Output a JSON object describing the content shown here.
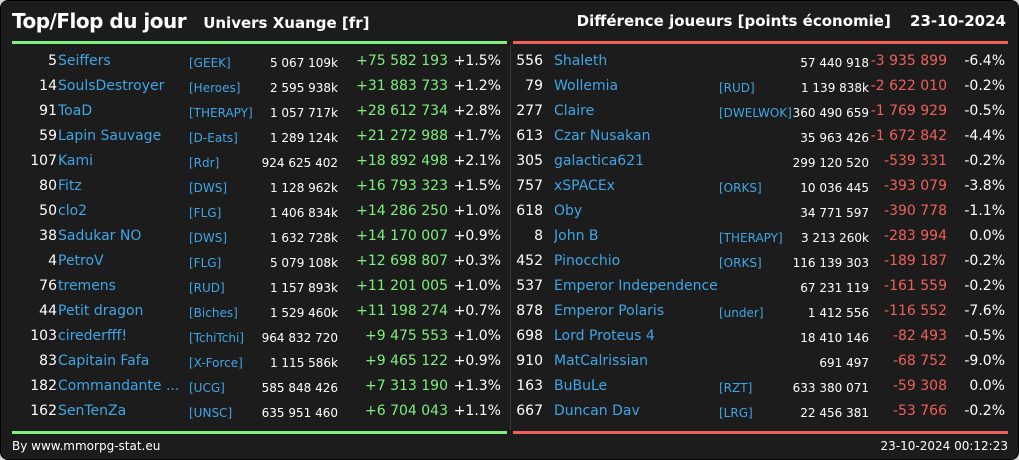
{
  "header": {
    "title": "Top/Flop du jour",
    "universe": "Univers Xuange [fr]",
    "metric": "Différence joueurs [points économie]",
    "date": "23-10-2024"
  },
  "colors": {
    "background": "#1c1c1c",
    "name": "#3fa6e6",
    "positive": "#7df07d",
    "negative": "#f0605a"
  },
  "top": [
    {
      "rank": "5",
      "name": "Seiffers",
      "alliance": "[GEEK]",
      "points": "5 067 109k",
      "diff": "+75 582 193",
      "pct": "+1.5%"
    },
    {
      "rank": "14",
      "name": "SoulsDestroyer",
      "alliance": "[Heroes]",
      "points": "2 595 938k",
      "diff": "+31 883 733",
      "pct": "+1.2%"
    },
    {
      "rank": "91",
      "name": "ToaD",
      "alliance": "[THERAPY]",
      "points": "1 057 717k",
      "diff": "+28 612 734",
      "pct": "+2.8%"
    },
    {
      "rank": "59",
      "name": "Lapin Sauvage",
      "alliance": "[D-Eats]",
      "points": "1 289 124k",
      "diff": "+21 272 988",
      "pct": "+1.7%"
    },
    {
      "rank": "107",
      "name": "Kami",
      "alliance": "[Rdr]",
      "points": "924 625 402",
      "diff": "+18 892 498",
      "pct": "+2.1%"
    },
    {
      "rank": "80",
      "name": "Fitz",
      "alliance": "[DWS]",
      "points": "1 128 962k",
      "diff": "+16 793 323",
      "pct": "+1.5%"
    },
    {
      "rank": "50",
      "name": "clo2",
      "alliance": "[FLG]",
      "points": "1 406 834k",
      "diff": "+14 286 250",
      "pct": "+1.0%"
    },
    {
      "rank": "38",
      "name": "Sadukar NO",
      "alliance": "[DWS]",
      "points": "1 632 728k",
      "diff": "+14 170 007",
      "pct": "+0.9%"
    },
    {
      "rank": "4",
      "name": "PetroV",
      "alliance": "[FLG]",
      "points": "5 079 108k",
      "diff": "+12 698 807",
      "pct": "+0.3%"
    },
    {
      "rank": "76",
      "name": "tremens",
      "alliance": "[RUD]",
      "points": "1 157 893k",
      "diff": "+11 201 005",
      "pct": "+1.0%"
    },
    {
      "rank": "44",
      "name": "Petit dragon",
      "alliance": "[Biches]",
      "points": "1 529 460k",
      "diff": "+11 198 274",
      "pct": "+0.7%"
    },
    {
      "rank": "103",
      "name": "cirederfff!",
      "alliance": "[TchiTchi]",
      "points": "964 832 720",
      "diff": "+9 475 553",
      "pct": "+1.0%"
    },
    {
      "rank": "83",
      "name": "Capitain Fafa",
      "alliance": "[X-Force]",
      "points": "1 115 586k",
      "diff": "+9 465 122",
      "pct": "+0.9%"
    },
    {
      "rank": "182",
      "name": "Commandante ...",
      "alliance": "[UCG]",
      "points": "585 848 426",
      "diff": "+7 313 190",
      "pct": "+1.3%"
    },
    {
      "rank": "162",
      "name": "SenTenZa",
      "alliance": "[UNSC]",
      "points": "635 951 460",
      "diff": "+6 704 043",
      "pct": "+1.1%"
    }
  ],
  "flop": [
    {
      "rank": "556",
      "name": "Shaleth",
      "alliance": "",
      "points": "57 440 918",
      "diff": "-3 935 899",
      "pct": "-6.4%"
    },
    {
      "rank": "79",
      "name": "Wollemia",
      "alliance": "[RUD]",
      "points": "1 139 838k",
      "diff": "-2 622 010",
      "pct": "-0.2%"
    },
    {
      "rank": "277",
      "name": "Claire",
      "alliance": "[DWELWOK]",
      "points": "360 490 659",
      "diff": "-1 769 929",
      "pct": "-0.5%"
    },
    {
      "rank": "613",
      "name": "Czar Nusakan",
      "alliance": "",
      "points": "35 963 426",
      "diff": "-1 672 842",
      "pct": "-4.4%"
    },
    {
      "rank": "305",
      "name": "galactica621",
      "alliance": "",
      "points": "299 120 520",
      "diff": "-539 331",
      "pct": "-0.2%"
    },
    {
      "rank": "757",
      "name": "xSPACEx",
      "alliance": "[ORKS]",
      "points": "10 036 445",
      "diff": "-393 079",
      "pct": "-3.8%"
    },
    {
      "rank": "618",
      "name": "Oby",
      "alliance": "",
      "points": "34 771 597",
      "diff": "-390 778",
      "pct": "-1.1%"
    },
    {
      "rank": "8",
      "name": "John B",
      "alliance": "[THERAPY]",
      "points": "3 213 260k",
      "diff": "-283 994",
      "pct": "0.0%"
    },
    {
      "rank": "452",
      "name": "Pinocchio",
      "alliance": "[ORKS]",
      "points": "116 139 303",
      "diff": "-189 187",
      "pct": "-0.2%"
    },
    {
      "rank": "537",
      "name": "Emperor Independence",
      "alliance": "",
      "points": "67 231 119",
      "diff": "-161 559",
      "pct": "-0.2%"
    },
    {
      "rank": "878",
      "name": "Emperor Polaris",
      "alliance": "[under]",
      "points": "1 412 556",
      "diff": "-116 552",
      "pct": "-7.6%"
    },
    {
      "rank": "698",
      "name": "Lord Proteus 4",
      "alliance": "",
      "points": "18 410 146",
      "diff": "-82 493",
      "pct": "-0.5%"
    },
    {
      "rank": "910",
      "name": "MatCalrissian",
      "alliance": "",
      "points": "691 497",
      "diff": "-68 752",
      "pct": "-9.0%"
    },
    {
      "rank": "163",
      "name": "BuBuLe",
      "alliance": "[RZT]",
      "points": "633 380 071",
      "diff": "-59 308",
      "pct": "0.0%"
    },
    {
      "rank": "667",
      "name": "Duncan Dav",
      "alliance": "[LRG]",
      "points": "22 456 381",
      "diff": "-53 766",
      "pct": "-0.2%"
    }
  ],
  "footer": {
    "credit": "By www.mmorpg-stat.eu",
    "timestamp": "23-10-2024 00:12:23"
  }
}
